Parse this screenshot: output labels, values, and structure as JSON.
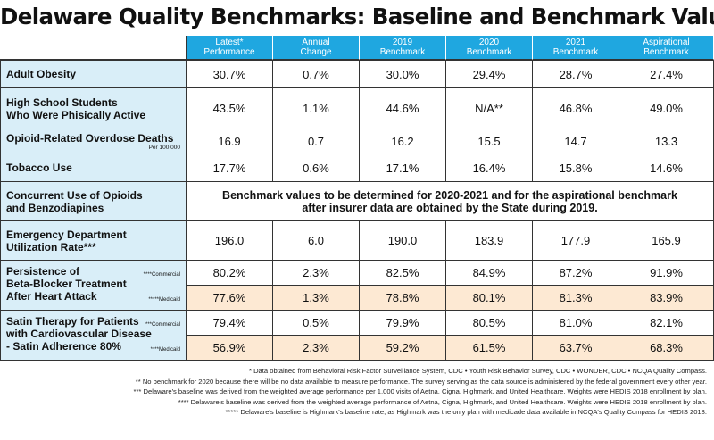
{
  "title": "Delaware Quality Benchmarks: Baseline and Benchmark Values",
  "columns": [
    {
      "line1": "Latest*",
      "line2": "Performance"
    },
    {
      "line1": "Annual",
      "line2": "Change"
    },
    {
      "line1": "2019",
      "line2": "Benchmark"
    },
    {
      "line1": "2020",
      "line2": "Benchmark"
    },
    {
      "line1": "2021",
      "line2": "Benchmark"
    },
    {
      "line1": "Aspirational",
      "line2": "Benchmark"
    }
  ],
  "rows": {
    "obesity": {
      "label": "Adult Obesity",
      "values": [
        "30.7%",
        "0.7%",
        "30.0%",
        "29.4%",
        "28.7%",
        "27.4%"
      ]
    },
    "hs_active": {
      "line1": "High School Students",
      "line2": "Who Were Phisically Active",
      "values": [
        "43.5%",
        "1.1%",
        "44.6%",
        "N/A**",
        "46.8%",
        "49.0%"
      ]
    },
    "opioid_deaths": {
      "label": "Opioid-Related Overdose Deaths",
      "sub": "Per 100,000",
      "values": [
        "16.9",
        "0.7",
        "16.2",
        "15.5",
        "14.7",
        "13.3"
      ]
    },
    "tobacco": {
      "label": "Tobacco Use",
      "values": [
        "17.7%",
        "0.6%",
        "17.1%",
        "16.4%",
        "15.8%",
        "14.6%"
      ]
    },
    "concurrent": {
      "line1": "Concurrent Use of Opioids",
      "line2": "and Benzodiapines",
      "note1": "Benchmark values to be determined for 2020-2021 and for the aspirational benchmark",
      "note2": "after insurer data are obtained by the State during 2019."
    },
    "ed_util": {
      "line1": "Emergency Department",
      "line2": "Utilization Rate***",
      "values": [
        "196.0",
        "6.0",
        "190.0",
        "183.9",
        "177.9",
        "165.9"
      ]
    },
    "beta": {
      "line1": "Persistence of",
      "line2": "Beta-Blocker Treatment",
      "line3": "After Heart Attack",
      "commercial_tag": "****Commercial",
      "medicaid_tag": "*****Medicaid",
      "commercial": [
        "80.2%",
        "2.3%",
        "82.5%",
        "84.9%",
        "87.2%",
        "91.9%"
      ],
      "medicaid": [
        "77.6%",
        "1.3%",
        "78.8%",
        "80.1%",
        "81.3%",
        "83.9%"
      ]
    },
    "statin": {
      "line1": "Satin Therapy for Patients",
      "line2": "with Cardiovascular Disease",
      "line3": "- Satin Adherence 80%",
      "commercial_tag": "***Commercial",
      "medicaid_tag": "****Medicaid",
      "commercial": [
        "79.4%",
        "0.5%",
        "79.9%",
        "80.5%",
        "81.0%",
        "82.1%"
      ],
      "medicaid": [
        "56.9%",
        "2.3%",
        "59.2%",
        "61.5%",
        "63.7%",
        "68.3%"
      ]
    }
  },
  "footnotes": [
    "* Data obtained from Behavioral Risk Factor Surveillance System, CDC • Youth Risk Behavior Survey, CDC • WONDER, CDC • NCQA Quality Compass.",
    "** No benchmark for 2020 because there will be no data available to measure performance. The survey serving as the data source is administered by the federal government every other year.",
    "*** Delaware's baseline was derived from the weighted average performance per 1,000 visits of Aetna, Cigna, Highmark, and United Healthcare. Weights were HEDIS 2018 enrollment by plan.",
    "**** Delaware's baseline was derived from the weighted average performance of Aetna, Cigna, Highmark, and United Healthcare. Weights were HEDIS 2018 enrollment by plan.",
    "***** Delaware's baseline is Highmark's baseline rate, as Highmark was the only plan with medicade data available in NCQA's Quality Compass for HEDIS 2018."
  ]
}
